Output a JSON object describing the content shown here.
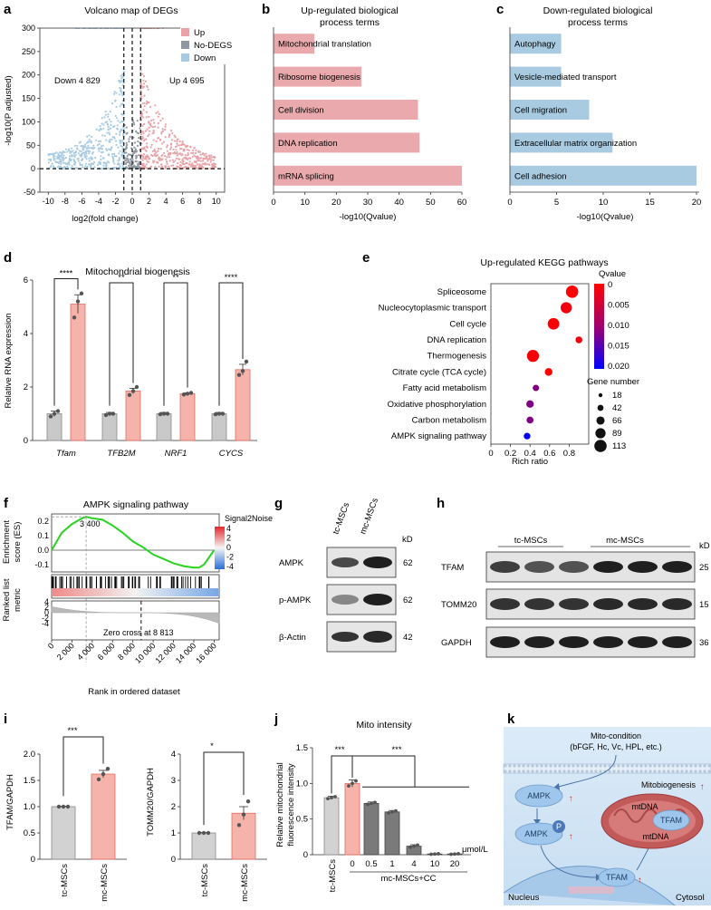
{
  "panels": {
    "a": {
      "label": "a",
      "title": "Volcano map of DEGs",
      "legend": [
        {
          "name": "Up",
          "color": "#e8a3a8"
        },
        {
          "name": "No-DEGS",
          "color": "#8e97a2"
        },
        {
          "name": "Down",
          "color": "#a9cbe2"
        }
      ],
      "down_text": "Down 4 829",
      "up_text": "Up 4 695",
      "xlabel": "log2(fold change)",
      "ylabel": "-log10(P adjusted)",
      "xticks": [
        "-10",
        "-8",
        "-6",
        "-4",
        "-2",
        "0",
        "2",
        "4",
        "6",
        "8",
        "10"
      ],
      "yticks": [
        "-50",
        "0",
        "50",
        "100",
        "150",
        "200",
        "250",
        "300"
      ]
    },
    "b": {
      "label": "b",
      "title_line1": "Up-regulated biological",
      "title_line2": "process terms",
      "xlabel": "-log10(Qvalue)"
    },
    "c": {
      "label": "c",
      "title_line1": "Down-regulated biological",
      "title_line2": "process terms",
      "xlabel": "-log10(Qvalue)"
    },
    "d": {
      "label": "d",
      "title": "Mitochondrial biogenesis",
      "ylabel": "Relative RNA expression"
    },
    "e": {
      "label": "e",
      "title": "Up-regulated KEGG pathways",
      "xlabel": "Rich ratio",
      "qvalue_title": "Qvalue",
      "gene_title": "Gene number",
      "q_ticks": [
        "0",
        "0.005",
        "0.010",
        "0.015",
        "0.020"
      ],
      "gene_sizes": [
        "18",
        "42",
        "66",
        "89",
        "113"
      ]
    },
    "f": {
      "label": "f",
      "title": "AMPK signaling pathway",
      "peak_label": "3 400",
      "zero_cross": "Zero cross at 8 813",
      "ylabel_es_1": "Enrichment",
      "ylabel_es_2": "score (ES)",
      "ylabel_rank_1": "Ranked list",
      "ylabel_rank_2": "metric",
      "xlabel": "Rank in ordered dataset",
      "signal_title": "Signal2Noise",
      "signal_ticks": [
        "4",
        "2",
        "0",
        "-2",
        "-4"
      ],
      "es_ticks": [
        "0.2",
        "0.1",
        "0.0",
        "-0.1"
      ],
      "rank_ticks": [
        "4",
        "2",
        "0",
        "-2",
        "-4"
      ],
      "xticks": [
        "0",
        "2 000",
        "4 000",
        "6 000",
        "8 000",
        "10 000",
        "12 000",
        "14 000",
        "16 000"
      ]
    },
    "g": {
      "label": "g",
      "lanes": [
        "tc-MSCs",
        "mc-MSCs"
      ],
      "kd": "kD",
      "rows": [
        {
          "name": "AMPK",
          "kd": "62"
        },
        {
          "name": "p-AMPK",
          "kd": "62"
        },
        {
          "name": "β-Actin",
          "kd": "42"
        }
      ]
    },
    "h": {
      "label": "h",
      "groups": [
        "tc-MSCs",
        "mc-MSCs"
      ],
      "kd": "kD",
      "rows": [
        {
          "name": "TFAM",
          "kd": "25"
        },
        {
          "name": "TOMM20",
          "kd": "15"
        },
        {
          "name": "GAPDH",
          "kd": "36"
        }
      ]
    },
    "i": {
      "label": "i",
      "sig1": "***",
      "sig2": "*",
      "ylabel1": "TFAM/GAPDH",
      "ylabel2": "TOMM20/GAPDH",
      "yticks1": [
        "0",
        "0.5",
        "1.0",
        "1.5",
        "2.0"
      ],
      "yticks2": [
        "0",
        "1",
        "2",
        "3",
        "4"
      ]
    },
    "j": {
      "label": "j",
      "title": "Mito intensity",
      "ylabel_1": "Relative mitochondrial",
      "ylabel_2": "fluorescence intensity",
      "sig_a": "***",
      "sig_b": "***",
      "group_label": "mc-MSCs+CC",
      "unit": "μmol/L",
      "yticks": [
        "0",
        "0.5",
        "1.0",
        "1.5"
      ]
    },
    "k": {
      "label": "k",
      "cond_line1": "Mito-condition",
      "cond_line2": "(bFGF, Hc, Vc, HPL, etc.)",
      "ampk": "AMPK",
      "p": "P",
      "tfam": "TFAM",
      "mitobio": "Mitobiogenesis",
      "mtdna1": "mtDNA",
      "mtdna2": "mtDNA",
      "tfam_mito": "TFAM",
      "nucleus": "Nucleus",
      "cytosol": "Cytosol"
    }
  },
  "chart_data": [
    {
      "type": "scatter",
      "panel": "a",
      "title": "Volcano map of DEGs",
      "xlabel": "log2(fold change)",
      "ylabel": "-log10(P adjusted)",
      "xlim": [
        -11,
        11
      ],
      "ylim": [
        -50,
        300
      ],
      "series": [
        {
          "name": "Up",
          "count": 4695
        },
        {
          "name": "Down",
          "count": 4829
        }
      ],
      "thresholds": {
        "x": [
          -1,
          0,
          1
        ],
        "y": 0
      }
    },
    {
      "type": "bar",
      "panel": "b",
      "orientation": "horizontal",
      "title": "Up-regulated biological process terms",
      "categories": [
        "Mitochondrial translation",
        "Ribosome biogenesis",
        "Cell division",
        "DNA replication",
        "mRNA splicing"
      ],
      "values": [
        13,
        28,
        46,
        46.5,
        60
      ],
      "xlim": [
        0,
        60
      ],
      "xticks": [
        "0",
        "10",
        "20",
        "30",
        "40",
        "50",
        "60"
      ],
      "color": "#e9a9ad"
    },
    {
      "type": "bar",
      "panel": "c",
      "orientation": "horizontal",
      "title": "Down-regulated biological process terms",
      "categories": [
        "Autophagy",
        "Vesicle-mediated transport",
        "Cell migration",
        "Extracellular matrix organization",
        "Cell adhesion"
      ],
      "values": [
        5.5,
        5.5,
        8.5,
        11,
        20
      ],
      "xlim": [
        0,
        20
      ],
      "xticks": [
        "0",
        "5",
        "10",
        "15",
        "20"
      ],
      "color": "#a9cbe2"
    },
    {
      "type": "bar",
      "panel": "d",
      "title": "Mitochondrial biogenesis",
      "ylabel": "Relative RNA expression",
      "ylim": [
        0,
        6
      ],
      "yticks": [
        "0",
        "2",
        "4",
        "6"
      ],
      "categories": [
        "Tfam",
        "TFB2M",
        "NRF1",
        "CYCS"
      ],
      "series": [
        {
          "name": "tc",
          "values": [
            1.0,
            1.0,
            1.0,
            1.0
          ],
          "color": "#c9c9c9",
          "errors": [
            0.1,
            0.05,
            0.05,
            0.05
          ],
          "points": [
            [
              0.9,
              1.0,
              1.1
            ],
            [
              0.95,
              1.0,
              1.0
            ],
            [
              0.98,
              1.0,
              1.0
            ],
            [
              0.98,
              1.0,
              1.0
            ]
          ]
        },
        {
          "name": "mc",
          "values": [
            5.1,
            1.85,
            1.75,
            2.65
          ],
          "color": "#f6b3ab",
          "errors": [
            0.35,
            0.1,
            0.03,
            0.2
          ],
          "points": [
            [
              4.6,
              5.2,
              5.5
            ],
            [
              1.7,
              1.85,
              2.0
            ],
            [
              1.72,
              1.75,
              1.78
            ],
            [
              2.45,
              2.6,
              2.95
            ]
          ]
        }
      ],
      "significance": [
        "****",
        "**",
        "**",
        "****"
      ]
    },
    {
      "type": "scatter",
      "panel": "e",
      "title": "Up-regulated KEGG pathways",
      "xlabel": "Rich ratio",
      "xlim": [
        0,
        1
      ],
      "xticks": [
        "0",
        "0.2",
        "0.4",
        "0.6",
        "0.8"
      ],
      "categories": [
        "Spliceosome",
        "Nucleocytoplasmic transport",
        "Cell cycle",
        "DNA replication",
        "Thermogenesis",
        "Citrate cycle (TCA cycle)",
        "Fatty acid metabolism",
        "Oxidative phosphorylation",
        "Carbon metabolism",
        "AMPK signaling pathway"
      ],
      "rich_ratio": [
        0.83,
        0.77,
        0.64,
        0.9,
        0.43,
        0.59,
        0.46,
        0.4,
        0.4,
        0.37
      ],
      "qvalue": [
        0.0,
        0.001,
        0.0005,
        0.001,
        0.0005,
        0.0,
        0.01,
        0.01,
        0.01,
        0.02
      ],
      "gene_number": [
        113,
        100,
        105,
        50,
        110,
        60,
        45,
        58,
        52,
        48
      ]
    },
    {
      "type": "line",
      "panel": "f",
      "title": "AMPK signaling pathway",
      "xlabel": "Rank in ordered dataset",
      "xlim": [
        0,
        16500
      ],
      "ylim": [
        -0.15,
        0.25
      ],
      "x": [
        0,
        1000,
        2000,
        3000,
        3400,
        4000,
        5000,
        6000,
        7000,
        8000,
        9000,
        10000,
        11000,
        12000,
        13000,
        14000,
        14500,
        15000,
        16000
      ],
      "y": [
        0,
        0.12,
        0.18,
        0.22,
        0.23,
        0.22,
        0.21,
        0.17,
        0.12,
        0.06,
        0.02,
        -0.03,
        -0.06,
        -0.09,
        -0.11,
        -0.12,
        -0.12,
        -0.1,
        0
      ],
      "peak": 3400,
      "zero_cross": 8813
    },
    {
      "type": "bar",
      "panel": "i",
      "subplot": 1,
      "categories": [
        "tc-MSCs",
        "mc-MSCs"
      ],
      "values": [
        1.0,
        1.62
      ],
      "errors": [
        0.01,
        0.07
      ],
      "points": [
        [
          1.0,
          1.0,
          1.0
        ],
        [
          1.52,
          1.62,
          1.72
        ]
      ],
      "ylim": [
        0,
        2
      ],
      "ylabel": "TFAM/GAPDH"
    },
    {
      "type": "bar",
      "panel": "i",
      "subplot": 2,
      "categories": [
        "tc-MSCs",
        "mc-MSCs"
      ],
      "values": [
        1.0,
        1.75
      ],
      "errors": [
        0.02,
        0.25
      ],
      "points": [
        [
          1.0,
          1.0,
          1.0
        ],
        [
          1.3,
          1.7,
          2.2
        ]
      ],
      "ylim": [
        0,
        4
      ],
      "ylabel": "TOMM20/GAPDH"
    },
    {
      "type": "bar",
      "panel": "j",
      "title": "Mito intensity",
      "ylabel": "Relative mitochondrial fluorescence intensity",
      "ylim": [
        0,
        1.5
      ],
      "categories": [
        "tc-MSCs",
        "0",
        "0.5",
        "1",
        "4",
        "10",
        "20"
      ],
      "values": [
        0.8,
        1.0,
        0.72,
        0.6,
        0.12,
        0.01,
        0.01
      ],
      "errors": [
        0.02,
        0.05,
        0.02,
        0.02,
        0.02,
        0.005,
        0.005
      ]
    }
  ]
}
